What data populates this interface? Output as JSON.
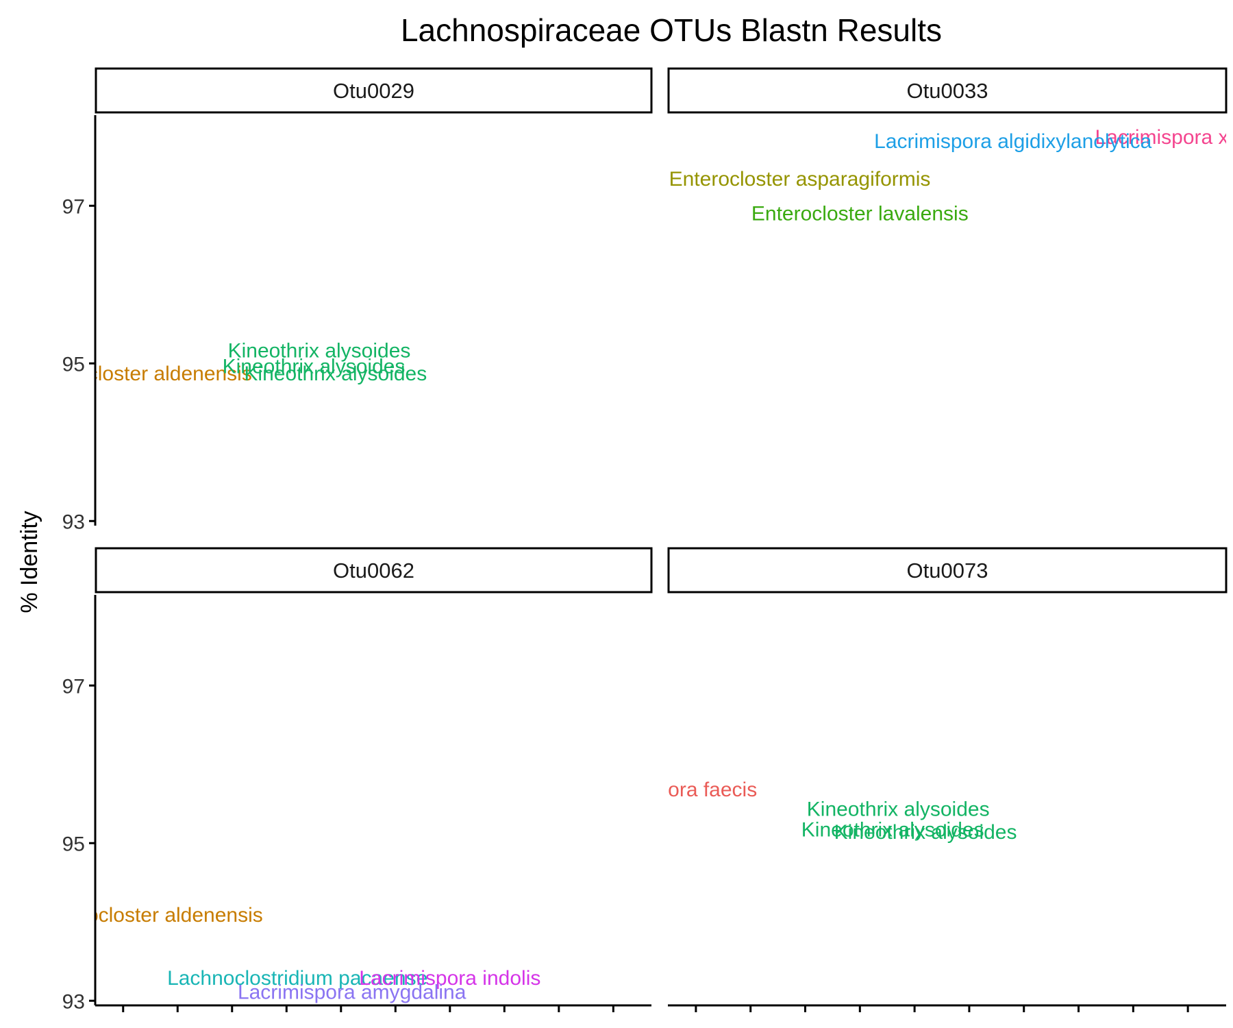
{
  "chart_data": {
    "type": "scatter",
    "title": "Lachnospiraceae OTUs Blastn Results",
    "ylabel": "% Identity",
    "xlabel": "",
    "ylim": [
      92.95,
      98.15
    ],
    "xlim": [
      0.5,
      10.7
    ],
    "y_ticks": [
      93,
      95,
      97
    ],
    "x_ticks": [
      1,
      2,
      3,
      4,
      5,
      6,
      7,
      8,
      9,
      10
    ],
    "grid": false,
    "legend": "none",
    "colors": {
      "Enterocloster aldenensis": "#C77C00",
      "Kineothrix alysoides": "#13B464",
      "Lachnoclostridium pacaense": "#19B5B5",
      "Lacrimispora amygdalina": "#8A74F2",
      "Lacrimispora indolis": "#D534E8",
      "Lacrimispora xylanolytica": "#F4458F",
      "Lacrimispora algidixylanolytica": "#1D9FE6",
      "Enterocloster asparagiformis": "#959400",
      "Enterocloster lavalensis": "#3AAA10",
      "Lacrimispora faecis": "#EA5B56"
    },
    "panels": [
      {
        "name": "Otu0029",
        "points": [
          {
            "label": "Enterocloster aldenensis",
            "x": 1.3,
            "y": 94.88
          },
          {
            "label": "Kineothrix alysoides",
            "x": 4.6,
            "y": 95.17
          },
          {
            "label": "Kineothrix alysoides",
            "x": 4.5,
            "y": 94.97
          },
          {
            "label": "Kineothrix alysoides",
            "x": 4.9,
            "y": 94.88
          }
        ]
      },
      {
        "name": "Otu0033",
        "points": [
          {
            "label": "Lacrimispora xylanolytica",
            "x": 10.4,
            "y": 97.88
          },
          {
            "label": "Lacrimispora algidixylanolytica",
            "x": 6.8,
            "y": 97.83
          },
          {
            "label": "Enterocloster asparagiformis",
            "x": 2.9,
            "y": 97.35
          },
          {
            "label": "Enterocloster lavalensis",
            "x": 4.0,
            "y": 96.91
          }
        ]
      },
      {
        "name": "Otu0062",
        "points": [
          {
            "label": "Enterocloster aldenensis",
            "x": 1.5,
            "y": 94.1
          },
          {
            "label": "Lachnoclostridium pacaense",
            "x": 4.2,
            "y": 93.3
          },
          {
            "label": "Lacrimispora indolis",
            "x": 7.0,
            "y": 93.3
          },
          {
            "label": "Lacrimispora amygdalina",
            "x": 5.2,
            "y": 93.12
          }
        ]
      },
      {
        "name": "Otu0073",
        "points": [
          {
            "label": "Lacrimispora faecis",
            "x": 0.5,
            "y": 95.69
          },
          {
            "label": "Kineothrix alysoides",
            "x": 4.7,
            "y": 95.44
          },
          {
            "label": "Kineothrix alysoides",
            "x": 4.6,
            "y": 95.18
          },
          {
            "label": "Kineothrix alysoides",
            "x": 5.2,
            "y": 95.15
          }
        ]
      }
    ]
  }
}
